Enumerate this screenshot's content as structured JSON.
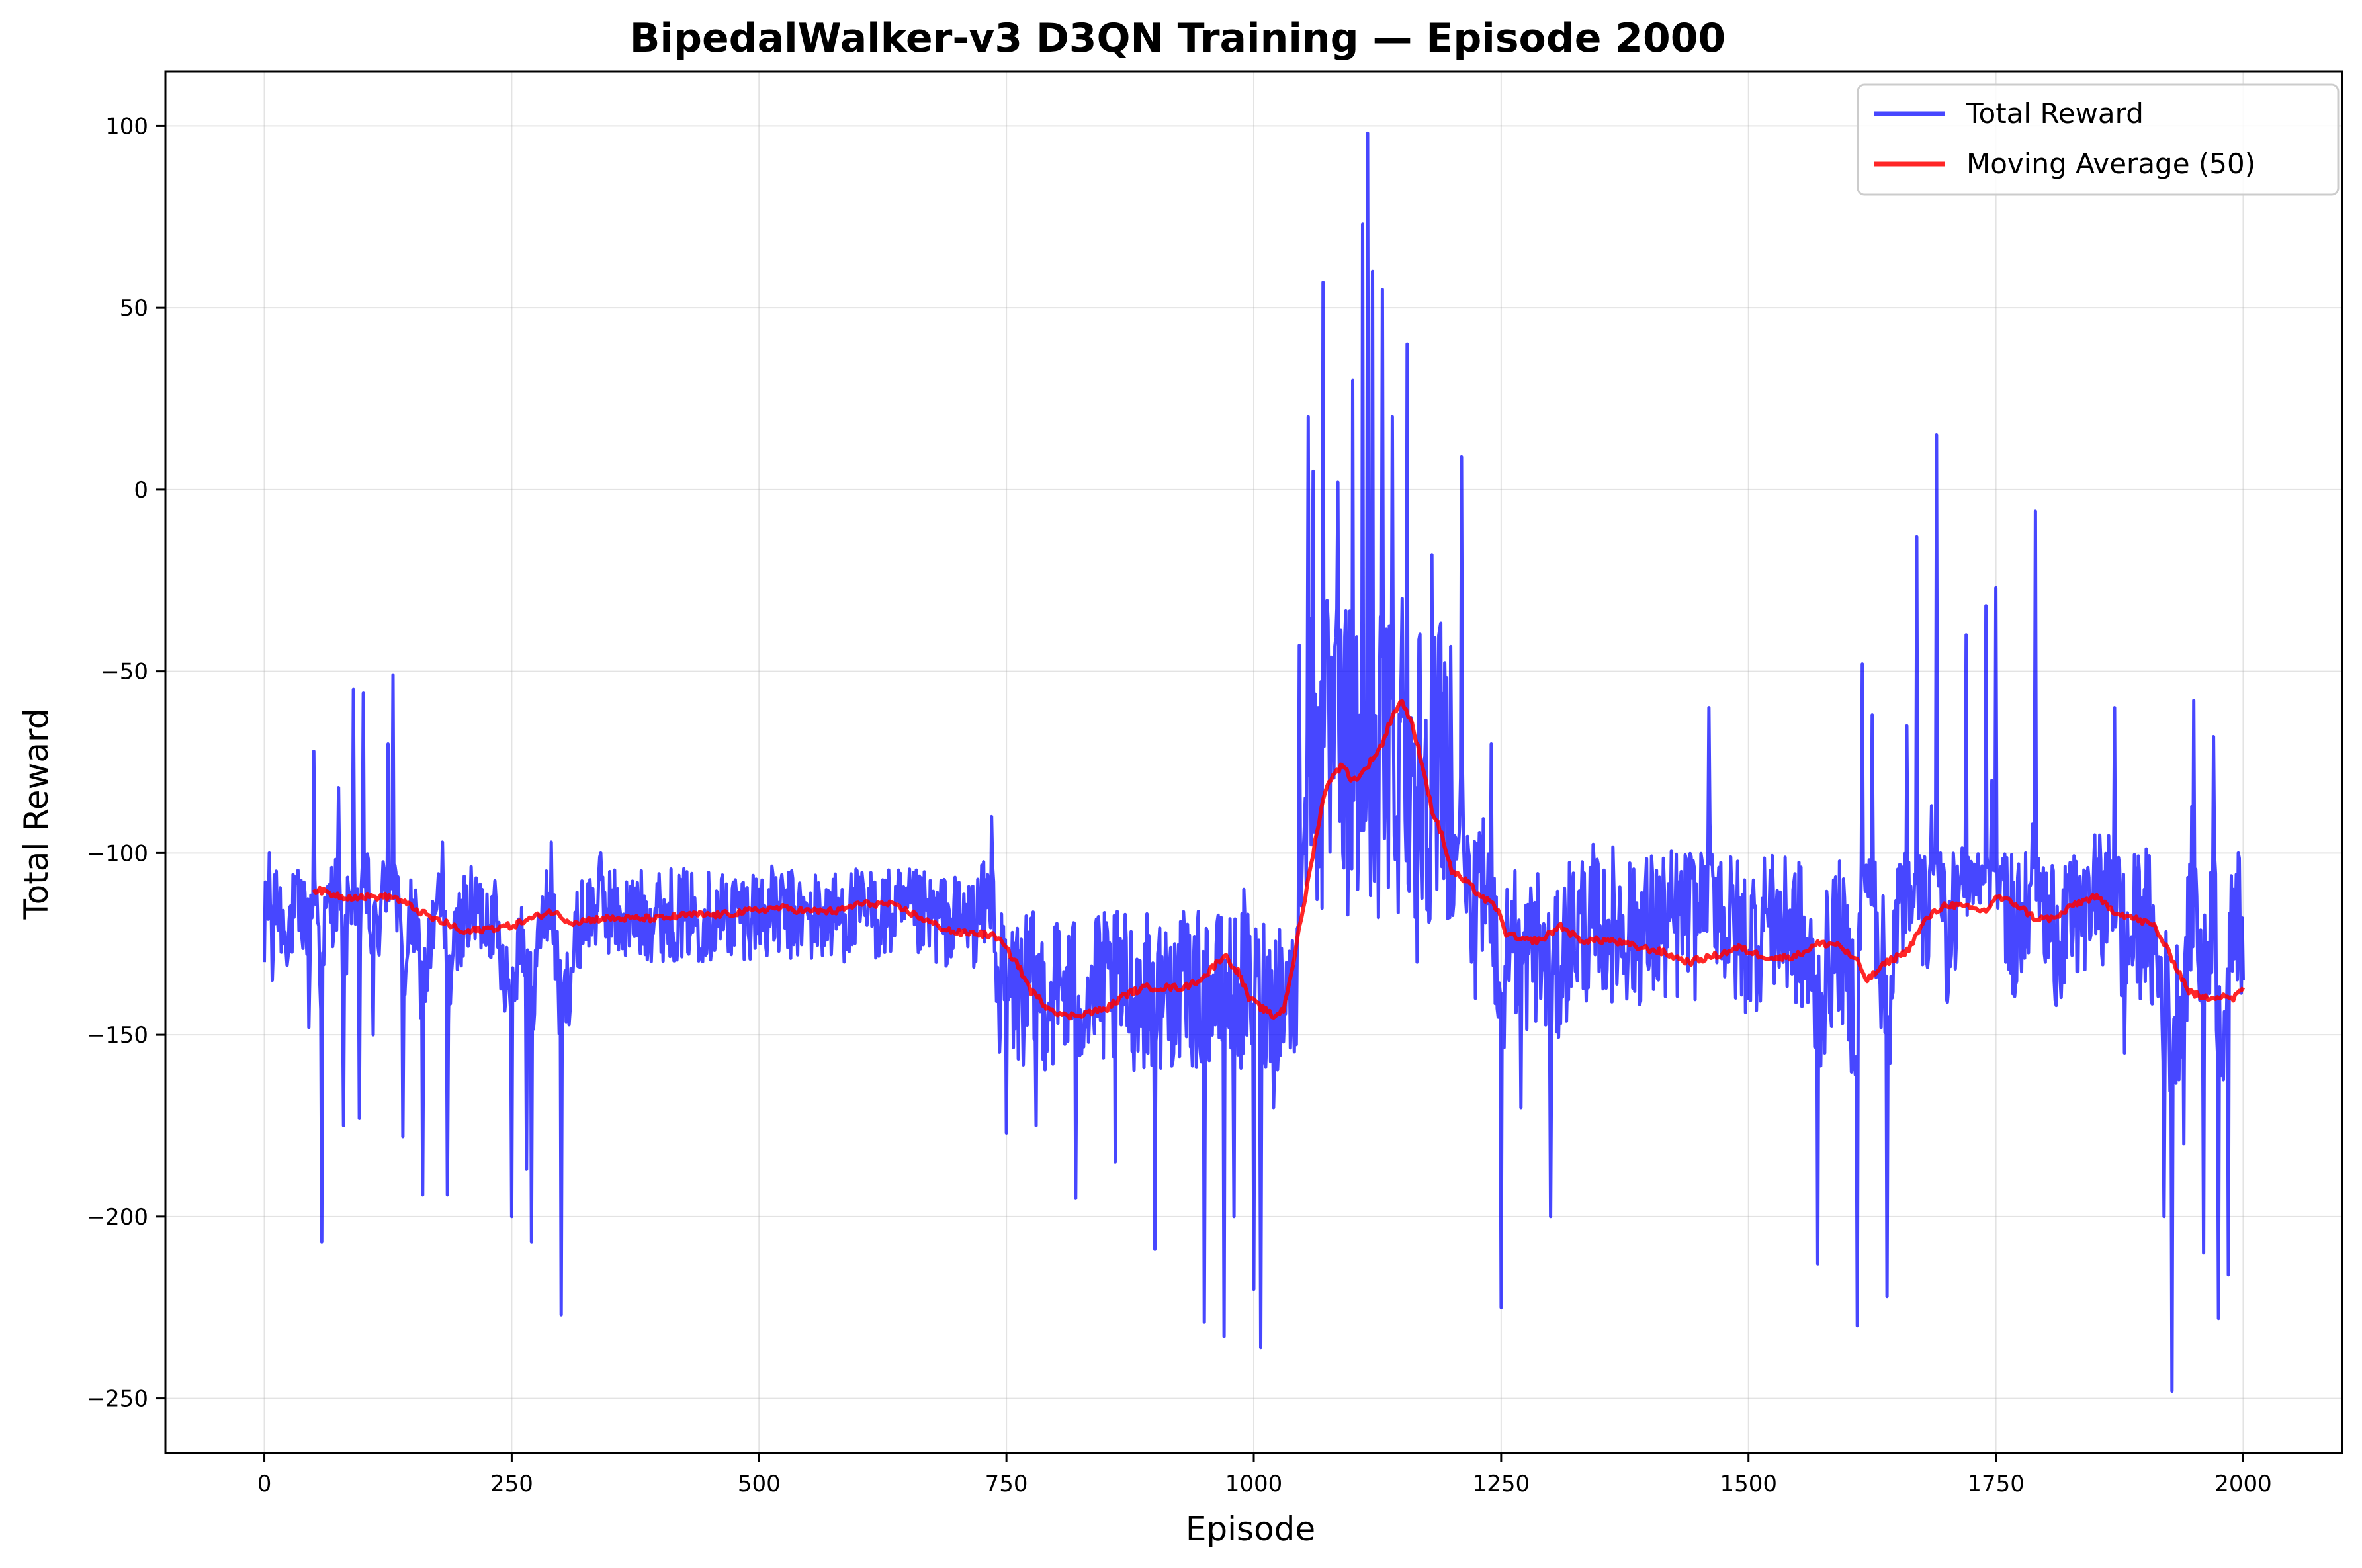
{
  "chart_data": {
    "type": "line",
    "title": "BipedalWalker-v3 D3QN Training — Episode 2000",
    "xlabel": "Episode",
    "ylabel": "Total Reward",
    "xlim": [
      -100,
      2100
    ],
    "ylim": [
      -265,
      115
    ],
    "xticks": [
      0,
      250,
      500,
      750,
      1000,
      1250,
      1500,
      1750,
      2000
    ],
    "yticks": [
      -250,
      -200,
      -150,
      -100,
      -50,
      0,
      50,
      100
    ],
    "xtick_labels": [
      "0",
      "250",
      "500",
      "750",
      "1000",
      "1250",
      "1500",
      "1750",
      "2000"
    ],
    "ytick_labels": [
      "−250",
      "−200",
      "−150",
      "−100",
      "−50",
      "0",
      "50",
      "100"
    ],
    "grid": true,
    "legend_position": "top-right",
    "colors": {
      "total_reward": "#0000ff",
      "moving_average": "#ff0000"
    },
    "series": [
      {
        "name": "Total Reward",
        "style": "noisy-line",
        "anchors": [
          [
            0,
            -130
          ],
          [
            5,
            -100
          ],
          [
            8,
            -135
          ],
          [
            12,
            -105
          ],
          [
            20,
            -125
          ],
          [
            40,
            -108
          ],
          [
            45,
            -148
          ],
          [
            50,
            -72
          ],
          [
            55,
            -120
          ],
          [
            58,
            -207
          ],
          [
            62,
            -115
          ],
          [
            75,
            -82
          ],
          [
            80,
            -175
          ],
          [
            85,
            -110
          ],
          [
            90,
            -55
          ],
          [
            96,
            -173
          ],
          [
            100,
            -56
          ],
          [
            110,
            -150
          ],
          [
            125,
            -70
          ],
          [
            130,
            -51
          ],
          [
            140,
            -178
          ],
          [
            150,
            -113
          ],
          [
            160,
            -194
          ],
          [
            175,
            -110
          ],
          [
            180,
            -97
          ],
          [
            185,
            -194
          ],
          [
            200,
            -113
          ],
          [
            230,
            -112
          ],
          [
            250,
            -200
          ],
          [
            260,
            -115
          ],
          [
            265,
            -187
          ],
          [
            270,
            -207
          ],
          [
            280,
            -120
          ],
          [
            290,
            -97
          ],
          [
            300,
            -227
          ],
          [
            320,
            -118
          ],
          [
            340,
            -100
          ],
          [
            360,
            -117
          ],
          [
            400,
            -113
          ],
          [
            450,
            -115
          ],
          [
            500,
            -110
          ],
          [
            550,
            -118
          ],
          [
            600,
            -113
          ],
          [
            650,
            -115
          ],
          [
            700,
            -122
          ],
          [
            720,
            -120
          ],
          [
            735,
            -90
          ],
          [
            750,
            -177
          ],
          [
            760,
            -125
          ],
          [
            780,
            -175
          ],
          [
            800,
            -140
          ],
          [
            820,
            -195
          ],
          [
            840,
            -120
          ],
          [
            860,
            -185
          ],
          [
            880,
            -140
          ],
          [
            900,
            -209
          ],
          [
            920,
            -125
          ],
          [
            950,
            -229
          ],
          [
            970,
            -233
          ],
          [
            980,
            -200
          ],
          [
            990,
            -110
          ],
          [
            1000,
            -220
          ],
          [
            1007,
            -236
          ],
          [
            1020,
            -170
          ],
          [
            1035,
            -140
          ],
          [
            1045,
            -120
          ],
          [
            1050,
            -100
          ],
          [
            1055,
            20
          ],
          [
            1060,
            5
          ],
          [
            1065,
            -60
          ],
          [
            1070,
            57
          ],
          [
            1080,
            -50
          ],
          [
            1085,
            2
          ],
          [
            1090,
            -100
          ],
          [
            1100,
            30
          ],
          [
            1105,
            -110
          ],
          [
            1110,
            73
          ],
          [
            1115,
            98
          ],
          [
            1120,
            60
          ],
          [
            1125,
            -80
          ],
          [
            1130,
            55
          ],
          [
            1140,
            20
          ],
          [
            1145,
            -90
          ],
          [
            1150,
            -30
          ],
          [
            1155,
            40
          ],
          [
            1165,
            -130
          ],
          [
            1180,
            -18
          ],
          [
            1185,
            -110
          ],
          [
            1200,
            -80
          ],
          [
            1210,
            9
          ],
          [
            1220,
            -130
          ],
          [
            1240,
            -70
          ],
          [
            1250,
            -225
          ],
          [
            1260,
            -120
          ],
          [
            1270,
            -170
          ],
          [
            1290,
            -140
          ],
          [
            1300,
            -200
          ],
          [
            1320,
            -130
          ],
          [
            1350,
            -120
          ],
          [
            1400,
            -130
          ],
          [
            1450,
            -120
          ],
          [
            1460,
            -60
          ],
          [
            1480,
            -130
          ],
          [
            1500,
            -140
          ],
          [
            1520,
            -120
          ],
          [
            1550,
            -130
          ],
          [
            1570,
            -213
          ],
          [
            1590,
            -130
          ],
          [
            1610,
            -230
          ],
          [
            1615,
            -48
          ],
          [
            1625,
            -62
          ],
          [
            1640,
            -222
          ],
          [
            1650,
            -130
          ],
          [
            1660,
            -65
          ],
          [
            1670,
            -13
          ],
          [
            1680,
            -130
          ],
          [
            1690,
            15
          ],
          [
            1700,
            -140
          ],
          [
            1720,
            -40
          ],
          [
            1740,
            -32
          ],
          [
            1750,
            -27
          ],
          [
            1760,
            -130
          ],
          [
            1780,
            -100
          ],
          [
            1790,
            -6
          ],
          [
            1800,
            -130
          ],
          [
            1830,
            -120
          ],
          [
            1850,
            -95
          ],
          [
            1870,
            -60
          ],
          [
            1880,
            -155
          ],
          [
            1900,
            -110
          ],
          [
            1920,
            -200
          ],
          [
            1928,
            -248
          ],
          [
            1940,
            -180
          ],
          [
            1950,
            -58
          ],
          [
            1960,
            -210
          ],
          [
            1970,
            -68
          ],
          [
            1975,
            -228
          ],
          [
            1985,
            -216
          ],
          [
            1990,
            -110
          ],
          [
            1995,
            -100
          ],
          [
            2000,
            -135
          ]
        ]
      },
      {
        "name": "Moving Average (50)",
        "values": [
          [
            50,
            -110
          ],
          [
            80,
            -112
          ],
          [
            100,
            -112
          ],
          [
            130,
            -112
          ],
          [
            150,
            -115
          ],
          [
            170,
            -118
          ],
          [
            190,
            -120
          ],
          [
            200,
            -122
          ],
          [
            220,
            -121
          ],
          [
            250,
            -120
          ],
          [
            270,
            -118
          ],
          [
            290,
            -116
          ],
          [
            310,
            -119
          ],
          [
            340,
            -118
          ],
          [
            370,
            -118
          ],
          [
            400,
            -118
          ],
          [
            430,
            -117
          ],
          [
            460,
            -117
          ],
          [
            490,
            -116
          ],
          [
            520,
            -115
          ],
          [
            550,
            -116
          ],
          [
            580,
            -116
          ],
          [
            600,
            -114
          ],
          [
            630,
            -114
          ],
          [
            650,
            -116
          ],
          [
            680,
            -120
          ],
          [
            700,
            -122
          ],
          [
            720,
            -122
          ],
          [
            740,
            -123
          ],
          [
            760,
            -130
          ],
          [
            775,
            -138
          ],
          [
            790,
            -142
          ],
          [
            810,
            -145
          ],
          [
            830,
            -144
          ],
          [
            850,
            -143
          ],
          [
            870,
            -139
          ],
          [
            890,
            -137
          ],
          [
            910,
            -137
          ],
          [
            930,
            -137
          ],
          [
            950,
            -134
          ],
          [
            970,
            -128
          ],
          [
            985,
            -133
          ],
          [
            995,
            -140
          ],
          [
            1010,
            -143
          ],
          [
            1020,
            -145
          ],
          [
            1030,
            -143
          ],
          [
            1040,
            -130
          ],
          [
            1050,
            -115
          ],
          [
            1060,
            -100
          ],
          [
            1070,
            -85
          ],
          [
            1080,
            -78
          ],
          [
            1090,
            -76
          ],
          [
            1100,
            -80
          ],
          [
            1110,
            -78
          ],
          [
            1120,
            -74
          ],
          [
            1130,
            -70
          ],
          [
            1140,
            -62
          ],
          [
            1150,
            -58
          ],
          [
            1160,
            -65
          ],
          [
            1170,
            -75
          ],
          [
            1180,
            -88
          ],
          [
            1190,
            -95
          ],
          [
            1200,
            -105
          ],
          [
            1215,
            -108
          ],
          [
            1230,
            -112
          ],
          [
            1245,
            -115
          ],
          [
            1255,
            -122
          ],
          [
            1270,
            -124
          ],
          [
            1290,
            -124
          ],
          [
            1310,
            -120
          ],
          [
            1330,
            -124
          ],
          [
            1360,
            -124
          ],
          [
            1390,
            -126
          ],
          [
            1410,
            -127
          ],
          [
            1440,
            -130
          ],
          [
            1470,
            -128
          ],
          [
            1490,
            -126
          ],
          [
            1510,
            -128
          ],
          [
            1530,
            -129
          ],
          [
            1550,
            -128
          ],
          [
            1570,
            -125
          ],
          [
            1590,
            -125
          ],
          [
            1610,
            -130
          ],
          [
            1620,
            -135
          ],
          [
            1640,
            -130
          ],
          [
            1660,
            -127
          ],
          [
            1680,
            -118
          ],
          [
            1700,
            -114
          ],
          [
            1720,
            -115
          ],
          [
            1740,
            -116
          ],
          [
            1750,
            -112
          ],
          [
            1770,
            -114
          ],
          [
            1790,
            -118
          ],
          [
            1810,
            -118
          ],
          [
            1830,
            -114
          ],
          [
            1850,
            -112
          ],
          [
            1870,
            -116
          ],
          [
            1890,
            -118
          ],
          [
            1910,
            -120
          ],
          [
            1930,
            -130
          ],
          [
            1945,
            -138
          ],
          [
            1960,
            -140
          ],
          [
            1980,
            -139
          ],
          [
            1990,
            -140
          ],
          [
            2000,
            -137
          ]
        ]
      }
    ]
  }
}
